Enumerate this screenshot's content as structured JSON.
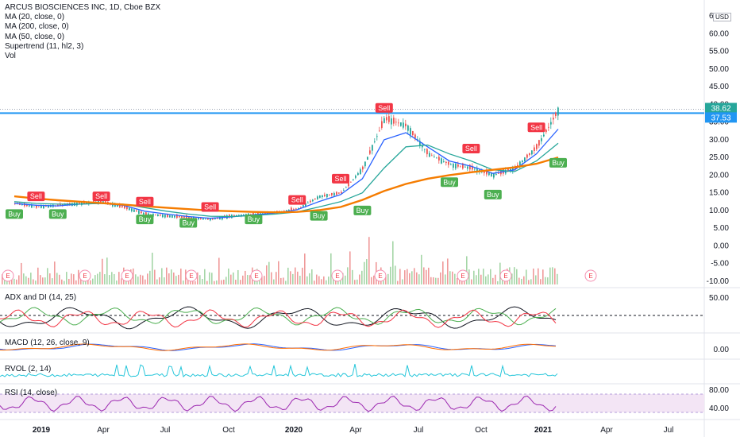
{
  "legend": {
    "symbol": "ARCUS BIOSCIENCES INC, 1D, Cboe BZX",
    "ma20": "MA (20, close, 0)",
    "ma200": "MA (200, close, 0)",
    "ma50": "MA (50, close, 0)",
    "supertrend": "Supertrend (11, hl2, 3)",
    "vol": "Vol"
  },
  "currency": "USD",
  "price_axis": [
    "65.00",
    "60.00",
    "55.00",
    "50.00",
    "45.00",
    "40.00",
    "35.00",
    "30.00",
    "25.00",
    "20.00",
    "15.00",
    "10.00",
    "5.00",
    "0.00",
    "-5.00",
    "-10.00"
  ],
  "price_tags": [
    {
      "text": "38.62",
      "color": "#26a69a"
    },
    {
      "text": "37.53",
      "color": "#2196f3"
    }
  ],
  "time_axis": [
    "2019",
    "Apr",
    "Jul",
    "Oct",
    "2020",
    "Apr",
    "Jul",
    "Oct",
    "2021",
    "Apr",
    "Jul"
  ],
  "earnings_marker": "E",
  "panes": {
    "adx": {
      "label": "ADX and DI (14, 25)",
      "axis": [
        "50.00"
      ]
    },
    "macd": {
      "label": "MACD (12, 26, close, 9)",
      "axis": [
        "0.00"
      ]
    },
    "rvol": {
      "label": "RVOL (2, 14)"
    },
    "rsi": {
      "label": "RSI (14, close)",
      "axis": [
        "80.00",
        "40.00"
      ]
    }
  },
  "colors": {
    "up": "#26a69a",
    "down": "#ef5350",
    "ma20": "#2962ff",
    "ma50": "#26a69a",
    "ma200": "#f57c00",
    "buy": "#4caf50",
    "sell": "#f23645",
    "hline": "#2196f3",
    "rsi": "#9c27b0"
  },
  "chart_data": {
    "type": "line",
    "title": "ARCUS BIOSCIENCES INC, 1D, Cboe BZX",
    "x": [
      "2018-12",
      "2019-01",
      "2019-02",
      "2019-03",
      "2019-04",
      "2019-05",
      "2019-06",
      "2019-07",
      "2019-08",
      "2019-09",
      "2019-10",
      "2019-11",
      "2019-12",
      "2020-01",
      "2020-02",
      "2020-03",
      "2020-04",
      "2020-05",
      "2020-06",
      "2020-07",
      "2020-08",
      "2020-09",
      "2020-10",
      "2020-11",
      "2020-12",
      "2021-01"
    ],
    "series": [
      {
        "name": "Price",
        "values": [
          12.0,
          11.0,
          11.5,
          12.0,
          12.5,
          11.0,
          9.0,
          8.5,
          8.0,
          7.5,
          8.5,
          9.0,
          9.5,
          10.5,
          14.0,
          15.0,
          22.0,
          36.0,
          34.0,
          26.0,
          23.0,
          22.0,
          20.0,
          22.0,
          28.0,
          38.62
        ]
      },
      {
        "name": "MA (20, close, 0)",
        "values": [
          12.0,
          11.5,
          11.3,
          11.8,
          12.0,
          11.5,
          9.8,
          9.0,
          8.3,
          7.8,
          8.2,
          8.8,
          9.3,
          10.2,
          12.5,
          14.5,
          19.0,
          30.0,
          32.0,
          28.0,
          24.0,
          22.5,
          20.5,
          21.5,
          26.0,
          33.0
        ]
      },
      {
        "name": "MA (50, close, 0)",
        "values": [
          12.5,
          12.0,
          11.8,
          11.8,
          12.0,
          11.8,
          10.8,
          9.8,
          9.0,
          8.4,
          8.3,
          8.6,
          9.0,
          9.6,
          11.0,
          12.5,
          15.0,
          22.0,
          28.0,
          28.5,
          26.0,
          24.0,
          21.5,
          21.0,
          24.0,
          29.0
        ]
      },
      {
        "name": "MA (200, close, 0)",
        "values": [
          14.0,
          13.4,
          12.9,
          12.5,
          12.1,
          11.7,
          11.2,
          10.8,
          10.4,
          10.0,
          9.8,
          9.6,
          9.5,
          9.6,
          10.1,
          11.0,
          13.0,
          15.5,
          17.5,
          19.0,
          20.0,
          20.8,
          21.5,
          22.2,
          23.2,
          25.0
        ]
      }
    ],
    "supertrend_signals": [
      {
        "label": "Buy",
        "x": "2018-12",
        "y": 9.0
      },
      {
        "label": "Sell",
        "x": "2019-01",
        "y": 14.0
      },
      {
        "label": "Buy",
        "x": "2019-02",
        "y": 9.0
      },
      {
        "label": "Sell",
        "x": "2019-04",
        "y": 14.0
      },
      {
        "label": "Buy",
        "x": "2019-06",
        "y": 7.5
      },
      {
        "label": "Sell",
        "x": "2019-06",
        "y": 12.5
      },
      {
        "label": "Buy",
        "x": "2019-08",
        "y": 6.5
      },
      {
        "label": "Sell",
        "x": "2019-09",
        "y": 11.0
      },
      {
        "label": "Buy",
        "x": "2019-11",
        "y": 7.5
      },
      {
        "label": "Sell",
        "x": "2020-01",
        "y": 13.0
      },
      {
        "label": "Buy",
        "x": "2020-02",
        "y": 8.5
      },
      {
        "label": "Sell",
        "x": "2020-03",
        "y": 19.0
      },
      {
        "label": "Buy",
        "x": "2020-04",
        "y": 10.0
      },
      {
        "label": "Sell",
        "x": "2020-05",
        "y": 39.0
      },
      {
        "label": "Buy",
        "x": "2020-08",
        "y": 18.0
      },
      {
        "label": "Sell",
        "x": "2020-09",
        "y": 27.5
      },
      {
        "label": "Buy",
        "x": "2020-10",
        "y": 14.5
      },
      {
        "label": "Sell",
        "x": "2020-12",
        "y": 33.5
      },
      {
        "label": "Buy",
        "x": "2021-01",
        "y": 23.5
      }
    ],
    "horizontal_line": 37.53,
    "ylim": [
      -10,
      66
    ],
    "grid": false,
    "legend": "top-left"
  }
}
